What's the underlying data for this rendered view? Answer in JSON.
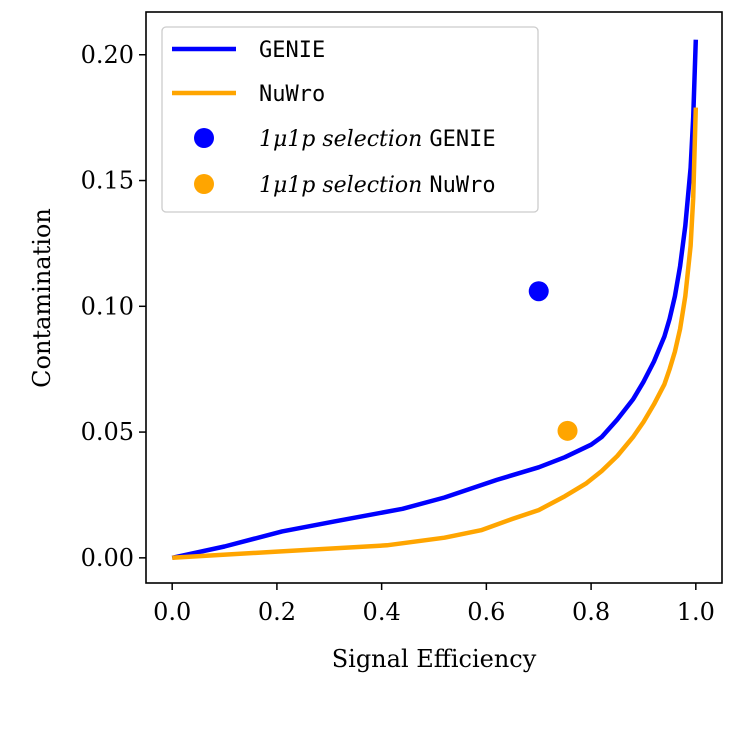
{
  "chart_data": {
    "type": "line",
    "title": "",
    "xlabel": "Signal Efficiency",
    "ylabel": "Contamination",
    "xlim": [
      -0.05,
      1.05
    ],
    "ylim": [
      -0.01,
      0.217
    ],
    "xticks": [
      0.0,
      0.2,
      0.4,
      0.6,
      0.8,
      1.0
    ],
    "xtick_labels": [
      "0.0",
      "0.2",
      "0.4",
      "0.6",
      "0.8",
      "1.0"
    ],
    "yticks": [
      0.0,
      0.05,
      0.1,
      0.15,
      0.2
    ],
    "ytick_labels": [
      "0.00",
      "0.05",
      "0.10",
      "0.15",
      "0.20"
    ],
    "grid": false,
    "legend_position": "top-left",
    "series": [
      {
        "name": "GENIE",
        "kind": "line",
        "color": "#0000ff",
        "x": [
          0.0,
          0.1,
          0.21,
          0.31,
          0.44,
          0.52,
          0.62,
          0.7,
          0.75,
          0.8,
          0.82,
          0.85,
          0.88,
          0.9,
          0.92,
          0.94,
          0.95,
          0.96,
          0.97,
          0.98,
          0.99,
          0.995,
          1.0
        ],
        "y": [
          0.0,
          0.0045,
          0.0105,
          0.0145,
          0.0195,
          0.024,
          0.031,
          0.036,
          0.04,
          0.045,
          0.048,
          0.055,
          0.063,
          0.07,
          0.078,
          0.088,
          0.095,
          0.104,
          0.116,
          0.132,
          0.155,
          0.175,
          0.206
        ]
      },
      {
        "name": "NuWro",
        "kind": "line",
        "color": "#ffa500",
        "x": [
          0.0,
          0.2,
          0.41,
          0.52,
          0.59,
          0.65,
          0.7,
          0.75,
          0.79,
          0.82,
          0.85,
          0.88,
          0.9,
          0.92,
          0.94,
          0.95,
          0.96,
          0.97,
          0.98,
          0.99,
          0.995,
          1.0
        ],
        "y": [
          0.0,
          0.0025,
          0.005,
          0.008,
          0.011,
          0.0155,
          0.019,
          0.0245,
          0.0295,
          0.0345,
          0.0405,
          0.048,
          0.054,
          0.061,
          0.069,
          0.075,
          0.082,
          0.091,
          0.104,
          0.124,
          0.143,
          0.179
        ]
      }
    ],
    "points": [
      {
        "name": "1μ1p selection GENIE",
        "prefix": "1μ1p selection ",
        "generator": "GENIE",
        "color": "#0000ff",
        "x": 0.7,
        "y": 0.106
      },
      {
        "name": "1μ1p selection NuWro",
        "prefix": "1μ1p selection ",
        "generator": "NuWro",
        "color": "#ffa500",
        "x": 0.755,
        "y": 0.0505
      }
    ]
  }
}
